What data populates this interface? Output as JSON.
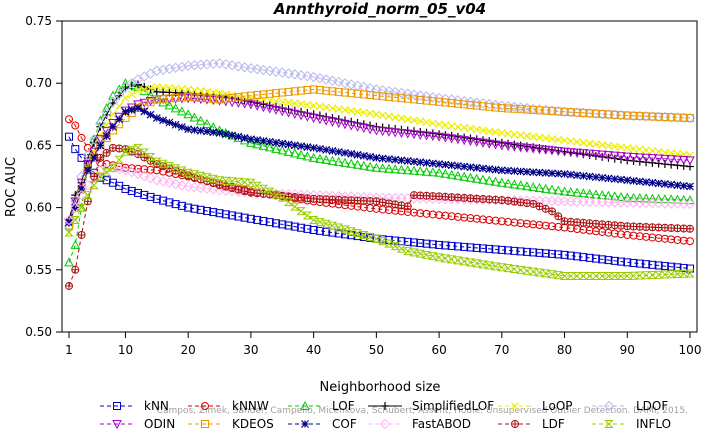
{
  "chart_data": {
    "type": "line",
    "title": "Annthyroid_norm_05_v04",
    "xlabel": "Neighborhood size",
    "ylabel": "ROC AUC",
    "xlim": [
      1,
      100
    ],
    "ylim": [
      0.5,
      0.75
    ],
    "xticks": [
      1,
      10,
      20,
      30,
      40,
      50,
      60,
      70,
      80,
      90,
      100
    ],
    "yticks": [
      0.5,
      0.55,
      0.6,
      0.65,
      0.7,
      0.75
    ],
    "ytick_labels": [
      "0.50",
      "0.55",
      "0.60",
      "0.65",
      "0.70",
      "0.75"
    ],
    "grid": false,
    "legend_position": "bottom",
    "watermark": "Campos, Zimek, Sander, Campello, Micenkova, Schubert, Assent, Houle: Unsupervised Outlier Detection. DAMI, 2015.",
    "series": [
      {
        "name": "kNN",
        "color": "#0000cc",
        "marker": "square",
        "dash": "4,3",
        "x": [
          1,
          2,
          3,
          4,
          5,
          6,
          8,
          10,
          15,
          20,
          30,
          40,
          50,
          60,
          70,
          80,
          90,
          100
        ],
        "y": [
          0.657,
          0.647,
          0.64,
          0.634,
          0.628,
          0.624,
          0.62,
          0.615,
          0.607,
          0.6,
          0.591,
          0.582,
          0.575,
          0.57,
          0.566,
          0.562,
          0.556,
          0.551
        ]
      },
      {
        "name": "kNNW",
        "color": "#dd0000",
        "marker": "circle",
        "dash": "4,3",
        "x": [
          1,
          2,
          3,
          4,
          5,
          6,
          8,
          10,
          15,
          20,
          30,
          40,
          50,
          60,
          70,
          80,
          90,
          100
        ],
        "y": [
          0.671,
          0.666,
          0.656,
          0.648,
          0.642,
          0.636,
          0.634,
          0.632,
          0.63,
          0.625,
          0.613,
          0.605,
          0.599,
          0.594,
          0.589,
          0.584,
          0.578,
          0.573
        ]
      },
      {
        "name": "LOF",
        "color": "#00cc00",
        "marker": "triangle",
        "dash": "4,3",
        "x": [
          1,
          2,
          3,
          4,
          5,
          6,
          8,
          10,
          12,
          15,
          20,
          25,
          30,
          40,
          50,
          60,
          70,
          80,
          90,
          100
        ],
        "y": [
          0.556,
          0.57,
          0.6,
          0.632,
          0.655,
          0.67,
          0.69,
          0.7,
          0.697,
          0.687,
          0.675,
          0.662,
          0.652,
          0.64,
          0.632,
          0.628,
          0.62,
          0.613,
          0.608,
          0.606
        ]
      },
      {
        "name": "SimplifiedLOF",
        "color": "#000000",
        "marker": "plus",
        "dash": "",
        "x": [
          1,
          2,
          3,
          4,
          5,
          6,
          8,
          10,
          12,
          15,
          20,
          25,
          30,
          40,
          50,
          60,
          70,
          80,
          90,
          100
        ],
        "y": [
          0.59,
          0.61,
          0.62,
          0.64,
          0.652,
          0.665,
          0.684,
          0.696,
          0.699,
          0.693,
          0.692,
          0.69,
          0.685,
          0.675,
          0.665,
          0.659,
          0.652,
          0.645,
          0.638,
          0.633
        ]
      },
      {
        "name": "LoOP",
        "color": "#eeee00",
        "marker": "x",
        "dash": "4,3",
        "x": [
          1,
          2,
          3,
          4,
          5,
          6,
          8,
          10,
          12,
          15,
          20,
          25,
          30,
          40,
          50,
          60,
          70,
          80,
          90,
          100
        ],
        "y": [
          0.58,
          0.6,
          0.615,
          0.632,
          0.645,
          0.658,
          0.675,
          0.688,
          0.694,
          0.697,
          0.695,
          0.692,
          0.688,
          0.682,
          0.675,
          0.667,
          0.66,
          0.654,
          0.648,
          0.642
        ]
      },
      {
        "name": "LDOF",
        "color": "#b9b9ef",
        "marker": "diamond",
        "dash": "4,3",
        "x": [
          1,
          2,
          3,
          4,
          5,
          6,
          8,
          10,
          12,
          15,
          20,
          25,
          30,
          40,
          50,
          60,
          70,
          80,
          90,
          100
        ],
        "y": [
          0.585,
          0.605,
          0.625,
          0.642,
          0.655,
          0.668,
          0.685,
          0.697,
          0.703,
          0.71,
          0.714,
          0.716,
          0.712,
          0.705,
          0.695,
          0.688,
          0.682,
          0.677,
          0.674,
          0.672
        ]
      },
      {
        "name": "ODIN",
        "color": "#aa00cc",
        "marker": "triangle-down",
        "dash": "4,3",
        "x": [
          1,
          2,
          3,
          4,
          5,
          6,
          8,
          10,
          12,
          15,
          20,
          25,
          30,
          40,
          50,
          60,
          70,
          80,
          90,
          100
        ],
        "y": [
          0.588,
          0.605,
          0.62,
          0.635,
          0.645,
          0.655,
          0.668,
          0.678,
          0.683,
          0.687,
          0.688,
          0.686,
          0.683,
          0.672,
          0.662,
          0.657,
          0.65,
          0.645,
          0.641,
          0.638
        ]
      },
      {
        "name": "KDEOS",
        "color": "#ee9900",
        "marker": "square",
        "dash": "4,3",
        "x": [
          1,
          2,
          3,
          4,
          5,
          6,
          8,
          10,
          12,
          15,
          20,
          25,
          30,
          40,
          50,
          60,
          70,
          80,
          90,
          100
        ],
        "y": [
          0.585,
          0.6,
          0.615,
          0.63,
          0.64,
          0.65,
          0.662,
          0.672,
          0.68,
          0.687,
          0.689,
          0.687,
          0.69,
          0.695,
          0.69,
          0.685,
          0.68,
          0.677,
          0.674,
          0.672
        ]
      },
      {
        "name": "COF",
        "color": "#000088",
        "marker": "star",
        "dash": "4,3",
        "x": [
          1,
          2,
          3,
          4,
          5,
          6,
          8,
          10,
          12,
          15,
          20,
          25,
          30,
          40,
          50,
          60,
          70,
          80,
          90,
          100
        ],
        "y": [
          0.588,
          0.6,
          0.615,
          0.63,
          0.64,
          0.65,
          0.665,
          0.677,
          0.68,
          0.672,
          0.663,
          0.66,
          0.655,
          0.648,
          0.64,
          0.635,
          0.63,
          0.627,
          0.622,
          0.617
        ]
      },
      {
        "name": "FastABOD",
        "color": "#ffb4f0",
        "marker": "diamond",
        "dash": "4,3",
        "x": [
          1,
          2,
          3,
          4,
          5,
          6,
          8,
          10,
          12,
          15,
          20,
          25,
          30,
          40,
          50,
          60,
          70,
          80,
          90,
          100
        ],
        "y": [
          0.59,
          0.6,
          0.61,
          0.618,
          0.625,
          0.63,
          0.632,
          0.63,
          0.627,
          0.622,
          0.617,
          0.614,
          0.612,
          0.61,
          0.608,
          0.607,
          0.606,
          0.605,
          0.604,
          0.603
        ]
      },
      {
        "name": "LDF",
        "color": "#aa1111",
        "marker": "circle-plus",
        "dash": "4,3",
        "x": [
          1,
          2,
          3,
          4,
          5,
          6,
          8,
          10,
          12,
          15,
          20,
          25,
          30,
          40,
          50,
          55,
          56,
          60,
          70,
          75,
          78,
          80,
          90,
          100
        ],
        "y": [
          0.537,
          0.55,
          0.578,
          0.605,
          0.625,
          0.64,
          0.648,
          0.647,
          0.643,
          0.635,
          0.626,
          0.618,
          0.612,
          0.607,
          0.605,
          0.601,
          0.61,
          0.609,
          0.606,
          0.603,
          0.597,
          0.589,
          0.585,
          0.583
        ]
      },
      {
        "name": "INFLO",
        "color": "#99cc00",
        "marker": "hourglass",
        "dash": "4,3",
        "x": [
          1,
          2,
          3,
          4,
          5,
          6,
          8,
          10,
          12,
          15,
          20,
          25,
          30,
          35,
          40,
          50,
          55,
          60,
          70,
          80,
          90,
          100
        ],
        "y": [
          0.58,
          0.59,
          0.6,
          0.61,
          0.618,
          0.625,
          0.632,
          0.645,
          0.648,
          0.637,
          0.628,
          0.622,
          0.62,
          0.608,
          0.59,
          0.575,
          0.565,
          0.56,
          0.552,
          0.545,
          0.545,
          0.547
        ]
      }
    ]
  }
}
